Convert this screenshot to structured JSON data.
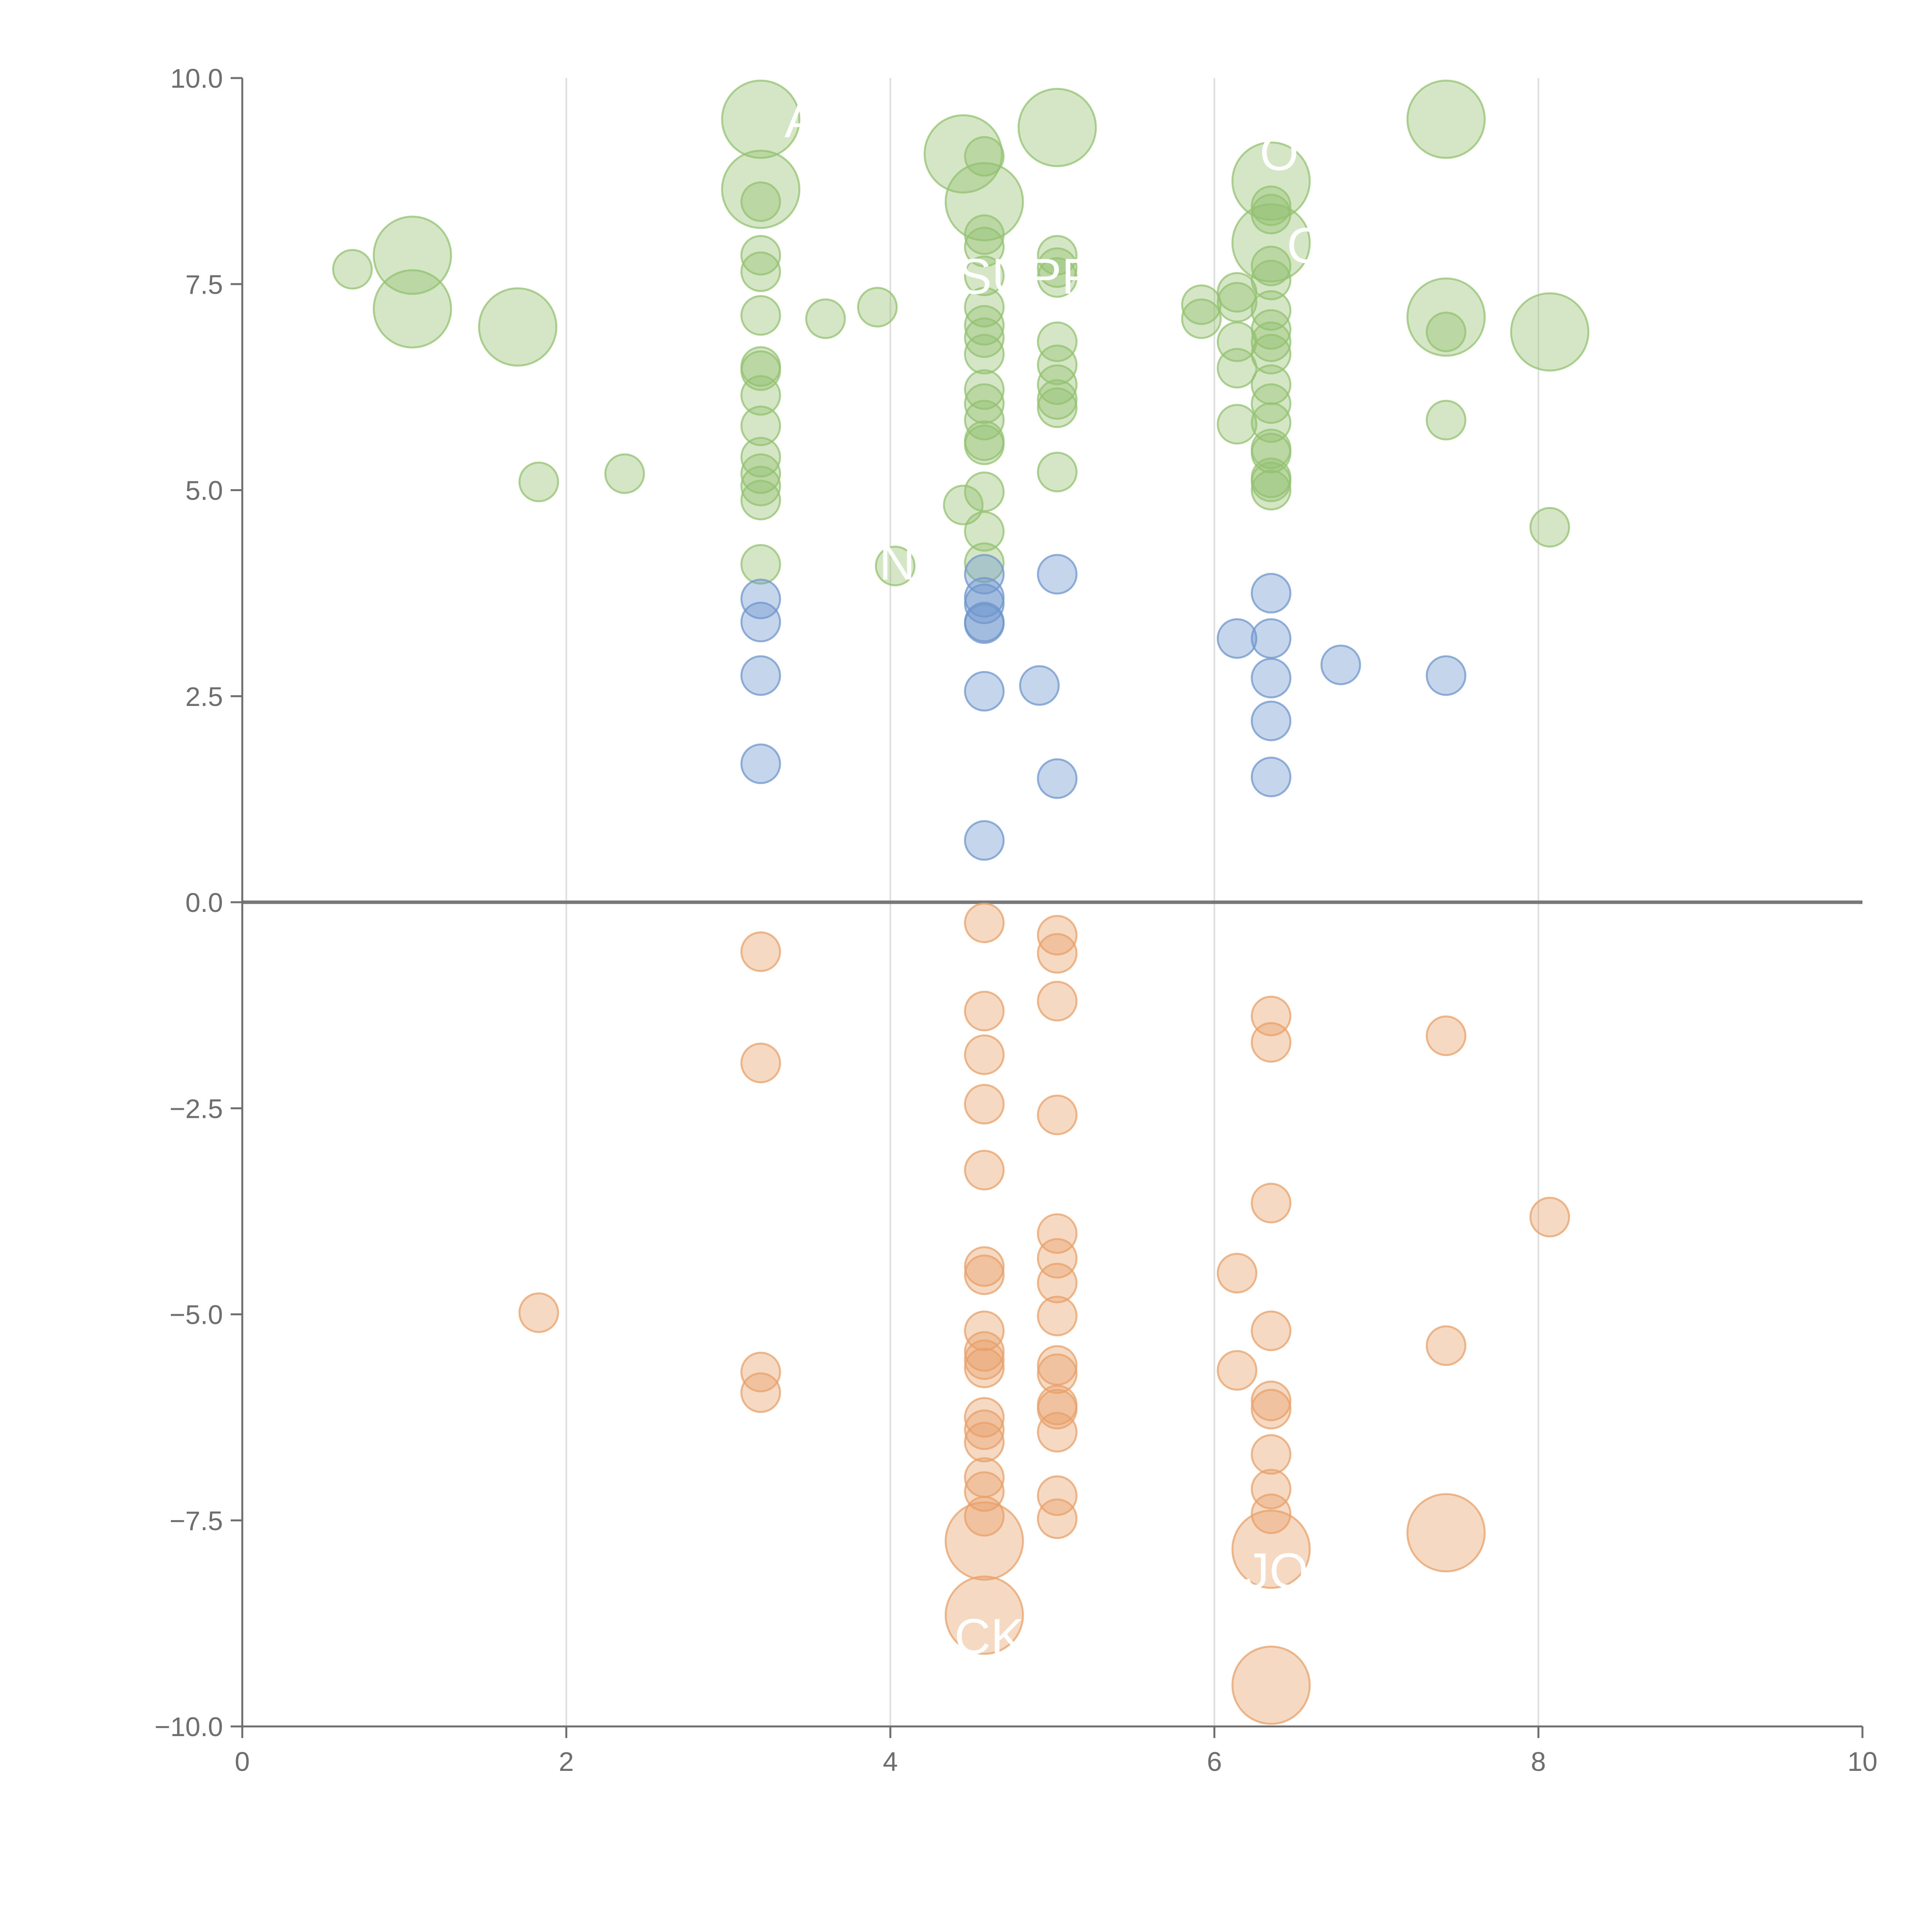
{
  "chart_data": {
    "type": "scatter",
    "title": "",
    "xlabel": "",
    "ylabel": "",
    "xlim": [
      0,
      10
    ],
    "ylim": [
      -10,
      10
    ],
    "x_ticks": [
      "0",
      "2",
      "4",
      "6",
      "8",
      "10"
    ],
    "y_ticks": [
      "10.0",
      "7.5",
      "5.0",
      "2.5",
      "0.0",
      "−2.5",
      "−5.0",
      "−7.5",
      "−10.0"
    ],
    "x_tick_values": [
      0,
      2,
      4,
      6,
      8,
      10
    ],
    "y_tick_values": [
      10,
      7.5,
      5,
      2.5,
      0,
      -2.5,
      -5,
      -7.5,
      -10
    ],
    "grid": "vertical",
    "reference_line_y": 0,
    "colors": {
      "positive": "#93c170",
      "mid": "#6f95cc",
      "negative": "#e8a06a",
      "axis": "#6e6e6e",
      "grid": "#dddddd",
      "zero_line": "#777777"
    },
    "series": [
      {
        "name": "positive",
        "color": "#93c170",
        "points": [
          [
            0.68,
            7.68,
            1
          ],
          [
            1.05,
            7.85,
            2
          ],
          [
            1.05,
            7.2,
            2
          ],
          [
            1.7,
            6.98,
            2
          ],
          [
            1.83,
            5.1,
            1
          ],
          [
            2.36,
            5.2,
            1
          ],
          [
            3.2,
            9.5,
            2
          ],
          [
            3.2,
            8.65,
            2
          ],
          [
            3.2,
            8.5,
            1
          ],
          [
            3.2,
            7.85,
            1
          ],
          [
            3.2,
            7.65,
            1
          ],
          [
            3.2,
            7.12,
            1
          ],
          [
            3.2,
            6.5,
            1
          ],
          [
            3.2,
            6.45,
            1
          ],
          [
            3.2,
            6.15,
            1
          ],
          [
            3.2,
            5.78,
            1
          ],
          [
            3.2,
            5.4,
            1
          ],
          [
            3.2,
            5.2,
            1
          ],
          [
            3.2,
            5.05,
            1
          ],
          [
            3.2,
            4.88,
            1
          ],
          [
            3.2,
            4.1,
            1
          ],
          [
            3.6,
            7.08,
            1
          ],
          [
            3.92,
            7.22,
            1
          ],
          [
            4.03,
            4.08,
            1
          ],
          [
            4.45,
            9.08,
            2
          ],
          [
            4.58,
            9.05,
            1
          ],
          [
            4.58,
            8.5,
            2
          ],
          [
            4.58,
            8.1,
            1
          ],
          [
            4.58,
            7.95,
            1
          ],
          [
            4.58,
            7.6,
            1
          ],
          [
            4.58,
            7.22,
            1
          ],
          [
            4.58,
            7.0,
            1
          ],
          [
            4.58,
            6.85,
            1
          ],
          [
            4.58,
            6.65,
            1
          ],
          [
            4.58,
            6.22,
            1
          ],
          [
            4.58,
            6.05,
            1
          ],
          [
            4.58,
            5.85,
            1
          ],
          [
            4.58,
            5.6,
            1
          ],
          [
            4.58,
            5.55,
            1
          ],
          [
            4.58,
            4.98,
            1
          ],
          [
            4.45,
            4.82,
            1
          ],
          [
            4.58,
            4.5,
            1
          ],
          [
            4.58,
            4.12,
            1
          ],
          [
            5.03,
            9.4,
            2
          ],
          [
            5.03,
            7.85,
            1
          ],
          [
            5.03,
            7.7,
            1
          ],
          [
            5.03,
            7.58,
            1
          ],
          [
            5.03,
            6.8,
            1
          ],
          [
            5.03,
            6.52,
            1
          ],
          [
            5.03,
            6.28,
            1
          ],
          [
            5.03,
            6.1,
            1
          ],
          [
            5.03,
            6.0,
            1
          ],
          [
            5.03,
            5.22,
            1
          ],
          [
            5.92,
            7.25,
            1
          ],
          [
            5.92,
            7.08,
            1
          ],
          [
            6.14,
            7.4,
            1
          ],
          [
            6.14,
            7.28,
            1
          ],
          [
            6.14,
            6.8,
            1
          ],
          [
            6.14,
            6.48,
            1
          ],
          [
            6.14,
            5.8,
            1
          ],
          [
            6.35,
            8.75,
            2
          ],
          [
            6.35,
            8.0,
            2
          ],
          [
            6.35,
            8.45,
            1
          ],
          [
            6.35,
            8.35,
            1
          ],
          [
            6.35,
            7.72,
            1
          ],
          [
            6.35,
            7.55,
            1
          ],
          [
            6.35,
            7.18,
            1
          ],
          [
            6.35,
            6.95,
            1
          ],
          [
            6.35,
            6.8,
            1
          ],
          [
            6.35,
            6.65,
            1
          ],
          [
            6.35,
            6.28,
            1
          ],
          [
            6.35,
            6.05,
            1
          ],
          [
            6.35,
            5.82,
            1
          ],
          [
            6.35,
            5.5,
            1
          ],
          [
            6.35,
            5.45,
            1
          ],
          [
            6.35,
            5.15,
            1
          ],
          [
            6.35,
            5.1,
            1
          ],
          [
            6.35,
            5.0,
            1
          ],
          [
            7.43,
            9.5,
            2
          ],
          [
            7.43,
            7.1,
            2
          ],
          [
            7.43,
            6.92,
            1
          ],
          [
            7.43,
            5.85,
            1
          ],
          [
            8.07,
            6.92,
            2
          ],
          [
            8.07,
            4.55,
            1
          ]
        ]
      },
      {
        "name": "mid",
        "color": "#6f95cc",
        "points": [
          [
            3.2,
            3.68,
            1
          ],
          [
            3.2,
            3.4,
            1
          ],
          [
            3.2,
            2.75,
            1
          ],
          [
            3.2,
            1.68,
            1
          ],
          [
            4.58,
            3.98,
            1
          ],
          [
            4.58,
            3.7,
            1
          ],
          [
            4.58,
            3.62,
            1
          ],
          [
            4.58,
            3.4,
            1
          ],
          [
            4.58,
            3.38,
            1
          ],
          [
            4.58,
            2.56,
            1
          ],
          [
            4.58,
            0.75,
            1
          ],
          [
            4.92,
            2.63,
            1
          ],
          [
            5.03,
            3.98,
            1
          ],
          [
            5.03,
            1.5,
            1
          ],
          [
            6.14,
            3.2,
            1
          ],
          [
            6.35,
            3.75,
            1
          ],
          [
            6.35,
            3.2,
            1
          ],
          [
            6.35,
            2.72,
            1
          ],
          [
            6.35,
            2.2,
            1
          ],
          [
            6.35,
            1.52,
            1
          ],
          [
            6.78,
            2.88,
            1
          ],
          [
            7.43,
            2.75,
            1
          ]
        ]
      },
      {
        "name": "negative",
        "color": "#e8a06a",
        "points": [
          [
            1.83,
            -4.98,
            1
          ],
          [
            3.2,
            -0.6,
            1
          ],
          [
            3.2,
            -1.95,
            1
          ],
          [
            3.2,
            -5.7,
            1
          ],
          [
            3.2,
            -5.95,
            1
          ],
          [
            4.58,
            -0.25,
            1
          ],
          [
            4.58,
            -1.32,
            1
          ],
          [
            4.58,
            -1.85,
            1
          ],
          [
            4.58,
            -2.45,
            1
          ],
          [
            4.58,
            -3.25,
            1
          ],
          [
            4.58,
            -4.42,
            1
          ],
          [
            4.58,
            -4.52,
            1
          ],
          [
            4.58,
            -5.2,
            1
          ],
          [
            4.58,
            -5.45,
            1
          ],
          [
            4.58,
            -5.55,
            1
          ],
          [
            4.58,
            -5.65,
            1
          ],
          [
            4.58,
            -6.25,
            1
          ],
          [
            4.58,
            -6.4,
            1
          ],
          [
            4.58,
            -6.55,
            1
          ],
          [
            4.58,
            -6.98,
            1
          ],
          [
            4.58,
            -7.15,
            1
          ],
          [
            4.58,
            -7.45,
            1
          ],
          [
            4.58,
            -7.75,
            2
          ],
          [
            4.58,
            -8.65,
            2
          ],
          [
            5.03,
            -0.4,
            1
          ],
          [
            5.03,
            -0.62,
            1
          ],
          [
            5.03,
            -1.2,
            1
          ],
          [
            5.03,
            -2.58,
            1
          ],
          [
            5.03,
            -4.02,
            1
          ],
          [
            5.03,
            -4.32,
            1
          ],
          [
            5.03,
            -4.62,
            1
          ],
          [
            5.03,
            -5.02,
            1
          ],
          [
            5.03,
            -5.62,
            1
          ],
          [
            5.03,
            -5.72,
            1
          ],
          [
            5.03,
            -6.1,
            1
          ],
          [
            5.03,
            -6.15,
            1
          ],
          [
            5.03,
            -6.43,
            1
          ],
          [
            5.03,
            -7.2,
            1
          ],
          [
            5.03,
            -7.48,
            1
          ],
          [
            6.14,
            -4.5,
            1
          ],
          [
            6.14,
            -5.68,
            1
          ],
          [
            6.35,
            -1.38,
            1
          ],
          [
            6.35,
            -1.7,
            1
          ],
          [
            6.35,
            -3.65,
            1
          ],
          [
            6.35,
            -5.2,
            1
          ],
          [
            6.35,
            -6.05,
            1
          ],
          [
            6.35,
            -6.15,
            1
          ],
          [
            6.35,
            -6.7,
            1
          ],
          [
            6.35,
            -7.12,
            1
          ],
          [
            6.35,
            -7.42,
            1
          ],
          [
            6.35,
            -7.85,
            2
          ],
          [
            6.35,
            -9.5,
            2
          ],
          [
            7.43,
            -1.62,
            1
          ],
          [
            7.43,
            -5.38,
            1
          ],
          [
            7.43,
            -7.65,
            2
          ],
          [
            8.07,
            -3.82,
            1
          ]
        ]
      }
    ],
    "annotations": [
      "A",
      "SUPP",
      "C",
      "O",
      "N",
      "CK",
      "JO"
    ]
  }
}
